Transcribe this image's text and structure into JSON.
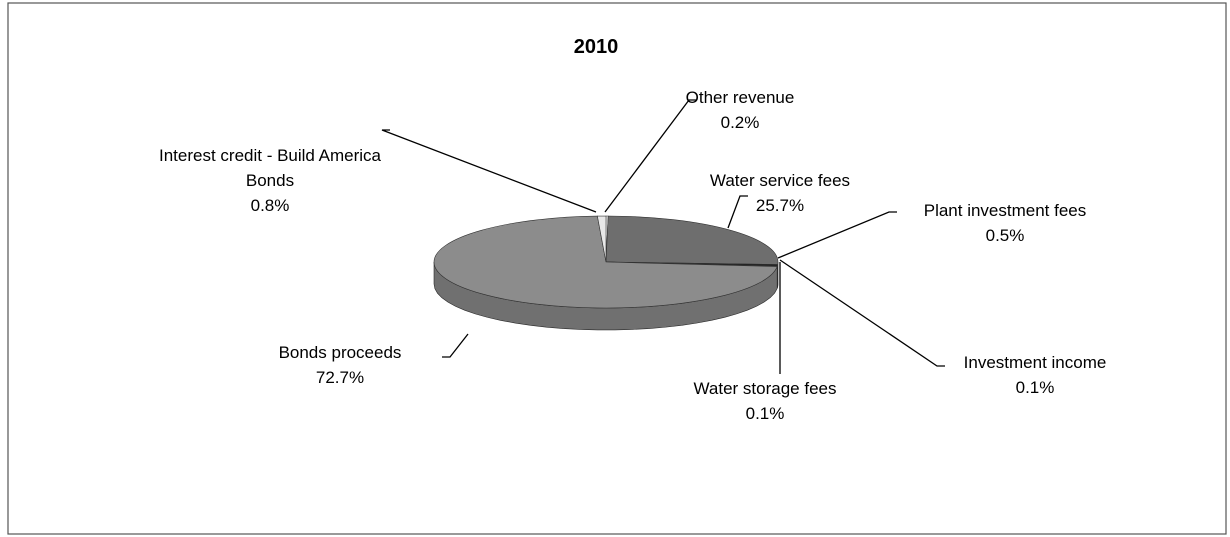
{
  "chart_data": {
    "type": "pie",
    "title": "2010",
    "categories": [
      "Other revenue",
      "Water service fees",
      "Plant investment fees",
      "Investment income",
      "Water storage fees",
      "Bonds proceeds",
      "Interest credit - Build America Bonds"
    ],
    "values": [
      0.2,
      25.7,
      0.5,
      0.1,
      0.1,
      72.7,
      0.8
    ],
    "value_labels": [
      "0.2%",
      "25.7%",
      "0.5%",
      "0.1%",
      "0.1%",
      "72.7%",
      "0.8%"
    ],
    "colors": [
      "#ffffff",
      "#6e6e6e",
      "#1a1a1a",
      "#000000",
      "#2a2a2a",
      "#8c8c8c",
      "#e8e8e8"
    ]
  }
}
